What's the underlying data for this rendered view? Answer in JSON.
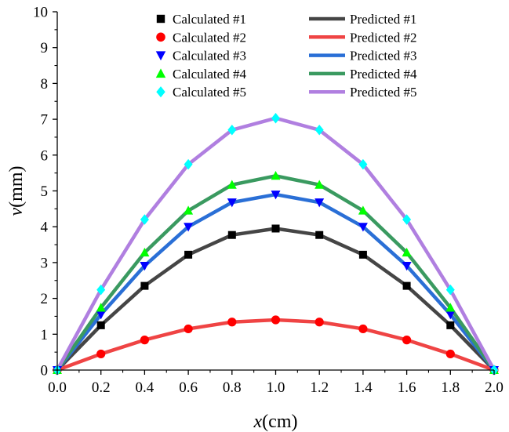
{
  "chart_data": {
    "type": "line",
    "title": "",
    "xlabel": {
      "var": "x",
      "unit": "(cm)"
    },
    "ylabel": {
      "var": "v",
      "unit": "(mm)"
    },
    "xlim": [
      0,
      2
    ],
    "ylim": [
      0,
      10
    ],
    "xticks": [
      "0.0",
      "0.2",
      "0.4",
      "0.6",
      "0.8",
      "1.0",
      "1.2",
      "1.4",
      "1.6",
      "1.8",
      "2.0"
    ],
    "yticks": [
      "0",
      "1",
      "2",
      "3",
      "4",
      "5",
      "6",
      "7",
      "8",
      "9",
      "10"
    ],
    "grid": false,
    "legend_position": "top",
    "x": [
      0.0,
      0.2,
      0.4,
      0.6,
      0.8,
      1.0,
      1.2,
      1.4,
      1.6,
      1.8,
      2.0
    ],
    "series": [
      {
        "name": "Calculated #1",
        "kind": "markers",
        "marker": "square",
        "color": "#000000",
        "values": [
          0,
          1.25,
          2.35,
          3.22,
          3.77,
          3.95,
          3.77,
          3.22,
          2.35,
          1.25,
          0
        ]
      },
      {
        "name": "Calculated #2",
        "kind": "markers",
        "marker": "circle",
        "color": "#ff0000",
        "values": [
          0,
          0.45,
          0.84,
          1.15,
          1.34,
          1.4,
          1.34,
          1.15,
          0.84,
          0.45,
          0
        ]
      },
      {
        "name": "Calculated #3",
        "kind": "markers",
        "marker": "triangle-down",
        "color": "#0000ff",
        "values": [
          0,
          1.55,
          2.91,
          4.0,
          4.68,
          4.9,
          4.68,
          4.0,
          2.91,
          1.55,
          0
        ]
      },
      {
        "name": "Calculated #4",
        "kind": "markers",
        "marker": "triangle-up",
        "color": "#00ff00",
        "values": [
          0,
          1.74,
          3.28,
          4.45,
          5.17,
          5.42,
          5.17,
          4.45,
          3.28,
          1.74,
          0
        ]
      },
      {
        "name": "Calculated #5",
        "kind": "markers",
        "marker": "diamond",
        "color": "#00ffff",
        "values": [
          0,
          2.24,
          4.2,
          5.74,
          6.7,
          7.03,
          6.7,
          5.74,
          4.2,
          2.24,
          0
        ]
      },
      {
        "name": "Predicted #1",
        "kind": "line",
        "color": "#454545",
        "values": [
          0,
          1.25,
          2.35,
          3.22,
          3.77,
          3.95,
          3.77,
          3.22,
          2.35,
          1.25,
          0
        ]
      },
      {
        "name": "Predicted #2",
        "kind": "line",
        "color": "#ef4444",
        "values": [
          0,
          0.45,
          0.84,
          1.15,
          1.34,
          1.4,
          1.34,
          1.15,
          0.84,
          0.45,
          0
        ]
      },
      {
        "name": "Predicted #3",
        "kind": "line",
        "color": "#2a6fd6",
        "values": [
          0,
          1.55,
          2.91,
          4.0,
          4.68,
          4.9,
          4.68,
          4.0,
          2.91,
          1.55,
          0
        ]
      },
      {
        "name": "Predicted #4",
        "kind": "line",
        "color": "#3a9a60",
        "values": [
          0,
          1.74,
          3.28,
          4.45,
          5.17,
          5.42,
          5.17,
          4.45,
          3.28,
          1.74,
          0
        ]
      },
      {
        "name": "Predicted #5",
        "kind": "line",
        "color": "#b07fe0",
        "values": [
          0,
          2.24,
          4.2,
          5.74,
          6.7,
          7.03,
          6.7,
          5.74,
          4.2,
          2.24,
          0
        ]
      }
    ]
  }
}
